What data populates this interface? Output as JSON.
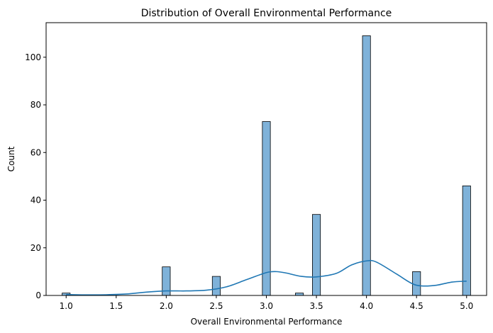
{
  "chart_data": {
    "type": "bar",
    "title": "Distribution of Overall Environmental Performance",
    "xlabel": "Overall Environmental Performance",
    "ylabel": "Count",
    "xlim": [
      0.8,
      5.2
    ],
    "ylim": [
      0,
      114.5
    ],
    "grid": false,
    "x_ticks": [
      "1.0",
      "1.5",
      "2.0",
      "2.5",
      "3.0",
      "3.5",
      "4.0",
      "4.5",
      "5.0"
    ],
    "y_ticks": [
      "0",
      "20",
      "40",
      "60",
      "80",
      "100"
    ],
    "bins": {
      "start": 1.0,
      "end": 5.0,
      "width": 0.08,
      "bar_color": "#7fb2d9",
      "edge_color": "#000000"
    },
    "series": [
      {
        "values": [
          {
            "x": 1.0,
            "count": 1
          },
          {
            "x": 2.0,
            "count": 12
          },
          {
            "x": 2.5,
            "count": 8
          },
          {
            "x": 3.0,
            "count": 73
          },
          {
            "x": 3.33,
            "count": 1
          },
          {
            "x": 3.5,
            "count": 34
          },
          {
            "x": 4.0,
            "count": 109
          },
          {
            "x": 4.5,
            "count": 10
          },
          {
            "x": 5.0,
            "count": 46
          }
        ]
      }
    ],
    "kde": {
      "color": "#1f77b4",
      "points": [
        [
          1.0,
          0.4
        ],
        [
          1.2,
          0.25
        ],
        [
          1.4,
          0.3
        ],
        [
          1.6,
          0.6
        ],
        [
          1.8,
          1.4
        ],
        [
          2.0,
          1.9
        ],
        [
          2.2,
          1.9
        ],
        [
          2.4,
          2.2
        ],
        [
          2.6,
          3.6
        ],
        [
          2.8,
          6.6
        ],
        [
          3.0,
          9.6
        ],
        [
          3.1,
          10.0
        ],
        [
          3.2,
          9.4
        ],
        [
          3.35,
          8.0
        ],
        [
          3.5,
          7.8
        ],
        [
          3.7,
          9.3
        ],
        [
          3.85,
          12.8
        ],
        [
          4.0,
          14.5
        ],
        [
          4.1,
          14.0
        ],
        [
          4.3,
          9.0
        ],
        [
          4.45,
          5.1
        ],
        [
          4.55,
          4.0
        ],
        [
          4.7,
          4.3
        ],
        [
          4.85,
          5.6
        ],
        [
          5.0,
          6.0
        ]
      ]
    }
  }
}
